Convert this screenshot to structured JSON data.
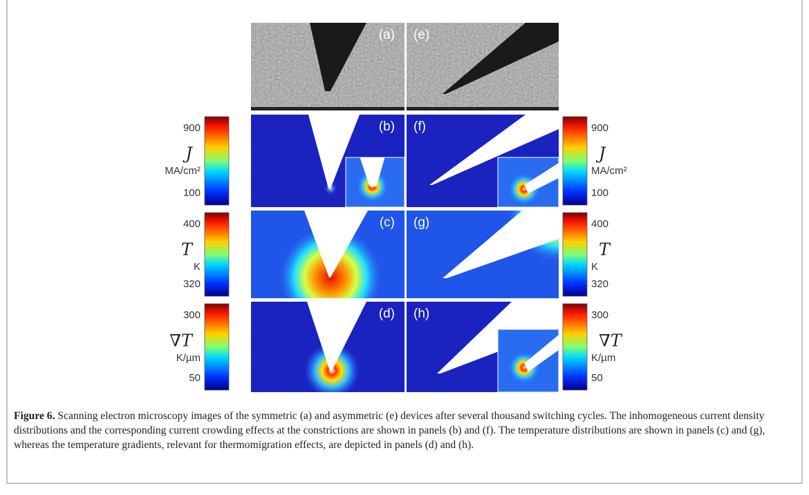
{
  "panels": [
    {
      "label": "(a)"
    },
    {
      "label": "(b)"
    },
    {
      "label": "(c)"
    },
    {
      "label": "(d)"
    },
    {
      "label": "(e)"
    },
    {
      "label": "(f)"
    },
    {
      "label": "(g)"
    },
    {
      "label": "(h)"
    }
  ],
  "colorbars": [
    {
      "symbol": "J",
      "unit": "MA/cm²",
      "ticks": [
        900,
        100
      ]
    },
    {
      "symbol": "T",
      "unit": "K",
      "ticks": [
        400,
        320
      ]
    },
    {
      "symbol": "∇T",
      "unit": "K/µm",
      "ticks": [
        300,
        50
      ]
    }
  ],
  "caption": {
    "label": "Figure 6.",
    "text": "Scanning electron microscopy images of the symmetric (a) and asymmetric (e) devices after several thousand switching cycles. The inhomogeneous current density distributions and the corresponding current crowding effects at the constrictions are shown in panels (b) and (f). The temperature distributions are shown in panels (c) and (g), whereas the temperature gradients, relevant for thermomigration effects, are depicted in panels (d) and (h)."
  }
}
